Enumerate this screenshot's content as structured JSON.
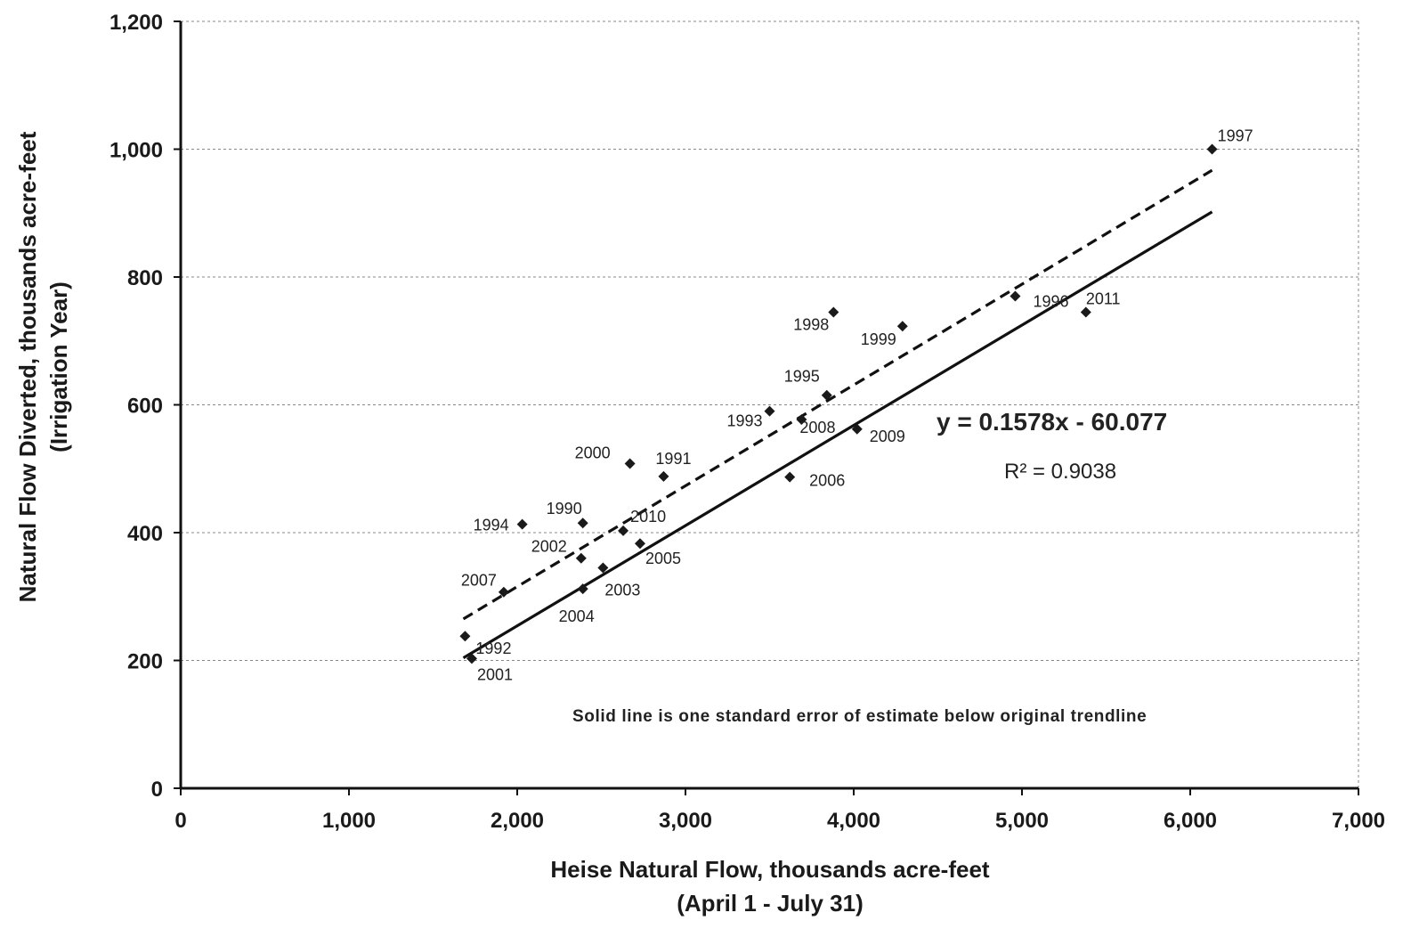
{
  "chart_data": {
    "type": "scatter",
    "xlabel": "Heise Natural Flow, thousands acre-feet",
    "xlabel_sub": "(April 1 - July 31)",
    "ylabel": "Natural Flow Diverted, thousands acre-feet",
    "ylabel_sub": "(Irrigation Year)",
    "xlim": [
      0,
      7000
    ],
    "ylim": [
      0,
      1200
    ],
    "x_ticks": [
      0,
      1000,
      2000,
      3000,
      4000,
      5000,
      6000,
      7000
    ],
    "x_tick_labels": [
      "0",
      "1,000",
      "2,000",
      "3,000",
      "4,000",
      "5,000",
      "6,000",
      "7,000"
    ],
    "y_ticks": [
      0,
      200,
      400,
      600,
      800,
      1000,
      1200
    ],
    "y_tick_labels": [
      "0",
      "200",
      "400",
      "600",
      "800",
      "1,000",
      "1,200"
    ],
    "grid": "horizontal dashed",
    "points": [
      {
        "label": "1997",
        "x": 6130,
        "y": 1000
      },
      {
        "label": "1996",
        "x": 4960,
        "y": 770
      },
      {
        "label": "2011",
        "x": 5380,
        "y": 745
      },
      {
        "label": "1998",
        "x": 3880,
        "y": 745
      },
      {
        "label": "1999",
        "x": 4290,
        "y": 723
      },
      {
        "label": "1995",
        "x": 3840,
        "y": 615
      },
      {
        "label": "1993",
        "x": 3500,
        "y": 590
      },
      {
        "label": "2008",
        "x": 3690,
        "y": 577
      },
      {
        "label": "2009",
        "x": 4020,
        "y": 562
      },
      {
        "label": "2000",
        "x": 2670,
        "y": 508
      },
      {
        "label": "1991",
        "x": 2870,
        "y": 488
      },
      {
        "label": "2006",
        "x": 3620,
        "y": 487
      },
      {
        "label": "1990",
        "x": 2390,
        "y": 415
      },
      {
        "label": "1994",
        "x": 2030,
        "y": 413
      },
      {
        "label": "2010",
        "x": 2630,
        "y": 403
      },
      {
        "label": "2005",
        "x": 2730,
        "y": 383
      },
      {
        "label": "2002",
        "x": 2380,
        "y": 360
      },
      {
        "label": "2003",
        "x": 2510,
        "y": 345
      },
      {
        "label": "2004",
        "x": 2390,
        "y": 312
      },
      {
        "label": "2007",
        "x": 1920,
        "y": 307
      },
      {
        "label": "1992",
        "x": 1690,
        "y": 238
      },
      {
        "label": "2001",
        "x": 1730,
        "y": 203
      }
    ],
    "trendlines": [
      {
        "style": "dashed",
        "x": [
          1680,
          6130
        ],
        "y": [
          265,
          967
        ]
      },
      {
        "style": "solid",
        "x": [
          1680,
          6130
        ],
        "y": [
          204,
          902
        ]
      }
    ],
    "equation": "y = 0.1578x - 60.077",
    "r_squared": "R² = 0.9038",
    "note": "Solid line is one standard error of estimate below original trendline",
    "colors": {
      "points": "#1a1a1a",
      "lines": "#111111",
      "grid": "#888888"
    }
  }
}
